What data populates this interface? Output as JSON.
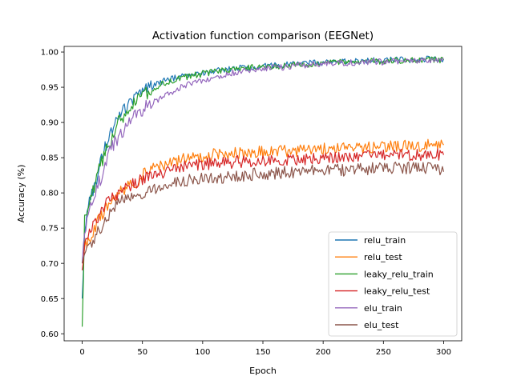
{
  "chart_data": {
    "type": "line",
    "title": "Activation function comparison (EEGNet)",
    "xlabel": "Epoch",
    "ylabel": "Accuracy (%)",
    "xlim": [
      -15,
      315
    ],
    "ylim": [
      0.59,
      1.008
    ],
    "xticks": [
      0,
      50,
      100,
      150,
      200,
      250,
      300
    ],
    "yticks": [
      0.6,
      0.65,
      0.7,
      0.75,
      0.8,
      0.85,
      0.9,
      0.95,
      1.0
    ],
    "ytick_labels": [
      "0.60",
      "0.65",
      "0.70",
      "0.75",
      "0.80",
      "0.85",
      "0.90",
      "0.95",
      "1.00"
    ],
    "grid": false,
    "legend_position": "lower-right",
    "series": [
      {
        "name": "relu_train",
        "color": "#1f77b4",
        "x": [
          0,
          2,
          5,
          10,
          15,
          20,
          25,
          30,
          35,
          40,
          45,
          50,
          55,
          60,
          70,
          80,
          90,
          100,
          110,
          120,
          130,
          140,
          150,
          160,
          170,
          180,
          190,
          200,
          210,
          220,
          230,
          240,
          250,
          260,
          270,
          280,
          290,
          300
        ],
        "y": [
          0.65,
          0.75,
          0.78,
          0.81,
          0.84,
          0.87,
          0.89,
          0.91,
          0.92,
          0.93,
          0.935,
          0.94,
          0.95,
          0.955,
          0.96,
          0.965,
          0.968,
          0.97,
          0.973,
          0.975,
          0.977,
          0.978,
          0.98,
          0.981,
          0.982,
          0.983,
          0.984,
          0.985,
          0.986,
          0.987,
          0.987,
          0.988,
          0.988,
          0.989,
          0.989,
          0.99,
          0.99,
          0.99
        ]
      },
      {
        "name": "relu_test",
        "color": "#ff7f0e",
        "x": [
          0,
          2,
          5,
          10,
          15,
          20,
          25,
          30,
          35,
          40,
          45,
          50,
          60,
          70,
          80,
          90,
          100,
          110,
          120,
          130,
          140,
          150,
          160,
          170,
          180,
          190,
          200,
          210,
          220,
          230,
          240,
          250,
          260,
          270,
          280,
          290,
          300
        ],
        "y": [
          0.7,
          0.72,
          0.73,
          0.75,
          0.765,
          0.78,
          0.79,
          0.8,
          0.805,
          0.81,
          0.815,
          0.825,
          0.835,
          0.84,
          0.845,
          0.85,
          0.852,
          0.854,
          0.855,
          0.856,
          0.857,
          0.858,
          0.859,
          0.86,
          0.86,
          0.861,
          0.862,
          0.862,
          0.863,
          0.864,
          0.864,
          0.865,
          0.866,
          0.866,
          0.867,
          0.868,
          0.868
        ]
      },
      {
        "name": "leaky_relu_train",
        "color": "#2ca02c",
        "x": [
          0,
          2,
          5,
          10,
          15,
          20,
          25,
          30,
          35,
          40,
          45,
          50,
          55,
          60,
          70,
          80,
          90,
          100,
          110,
          120,
          130,
          140,
          150,
          160,
          170,
          180,
          190,
          200,
          210,
          220,
          230,
          240,
          250,
          260,
          270,
          280,
          290,
          300
        ],
        "y": [
          0.61,
          0.76,
          0.78,
          0.81,
          0.84,
          0.86,
          0.88,
          0.9,
          0.91,
          0.92,
          0.93,
          0.935,
          0.945,
          0.95,
          0.957,
          0.963,
          0.966,
          0.969,
          0.972,
          0.974,
          0.976,
          0.978,
          0.979,
          0.98,
          0.981,
          0.982,
          0.983,
          0.984,
          0.985,
          0.986,
          0.986,
          0.987,
          0.987,
          0.988,
          0.988,
          0.989,
          0.989,
          0.989
        ]
      },
      {
        "name": "leaky_relu_test",
        "color": "#d62728",
        "x": [
          0,
          2,
          5,
          10,
          15,
          20,
          25,
          30,
          35,
          40,
          45,
          50,
          60,
          70,
          80,
          90,
          100,
          110,
          120,
          130,
          140,
          150,
          160,
          170,
          180,
          190,
          200,
          210,
          220,
          230,
          240,
          250,
          260,
          270,
          280,
          290,
          300
        ],
        "y": [
          0.69,
          0.72,
          0.74,
          0.755,
          0.77,
          0.785,
          0.795,
          0.8,
          0.805,
          0.81,
          0.815,
          0.82,
          0.825,
          0.83,
          0.835,
          0.838,
          0.84,
          0.842,
          0.843,
          0.844,
          0.845,
          0.846,
          0.847,
          0.848,
          0.848,
          0.849,
          0.85,
          0.85,
          0.851,
          0.851,
          0.852,
          0.852,
          0.853,
          0.853,
          0.854,
          0.854,
          0.854
        ]
      },
      {
        "name": "elu_train",
        "color": "#9467bd",
        "x": [
          0,
          2,
          5,
          10,
          15,
          20,
          25,
          30,
          35,
          40,
          45,
          50,
          55,
          60,
          70,
          80,
          90,
          100,
          110,
          120,
          130,
          140,
          150,
          160,
          170,
          180,
          190,
          200,
          210,
          220,
          230,
          240,
          250,
          260,
          270,
          280,
          290,
          300
        ],
        "y": [
          0.7,
          0.74,
          0.77,
          0.8,
          0.82,
          0.845,
          0.865,
          0.88,
          0.89,
          0.9,
          0.91,
          0.917,
          0.925,
          0.93,
          0.94,
          0.948,
          0.955,
          0.96,
          0.965,
          0.969,
          0.972,
          0.975,
          0.977,
          0.978,
          0.979,
          0.981,
          0.982,
          0.983,
          0.984,
          0.985,
          0.985,
          0.986,
          0.986,
          0.987,
          0.987,
          0.988,
          0.988,
          0.99
        ]
      },
      {
        "name": "elu_test",
        "color": "#8c564b",
        "x": [
          0,
          2,
          5,
          10,
          15,
          20,
          25,
          30,
          35,
          40,
          45,
          50,
          60,
          70,
          80,
          90,
          100,
          110,
          120,
          130,
          140,
          150,
          160,
          170,
          180,
          190,
          200,
          210,
          220,
          230,
          240,
          250,
          260,
          270,
          280,
          290,
          300
        ],
        "y": [
          0.7,
          0.715,
          0.725,
          0.735,
          0.75,
          0.765,
          0.775,
          0.785,
          0.79,
          0.795,
          0.8,
          0.8,
          0.805,
          0.81,
          0.815,
          0.818,
          0.82,
          0.822,
          0.823,
          0.825,
          0.826,
          0.827,
          0.828,
          0.829,
          0.83,
          0.831,
          0.831,
          0.832,
          0.833,
          0.833,
          0.834,
          0.834,
          0.835,
          0.835,
          0.836,
          0.836,
          0.83
        ]
      }
    ]
  }
}
